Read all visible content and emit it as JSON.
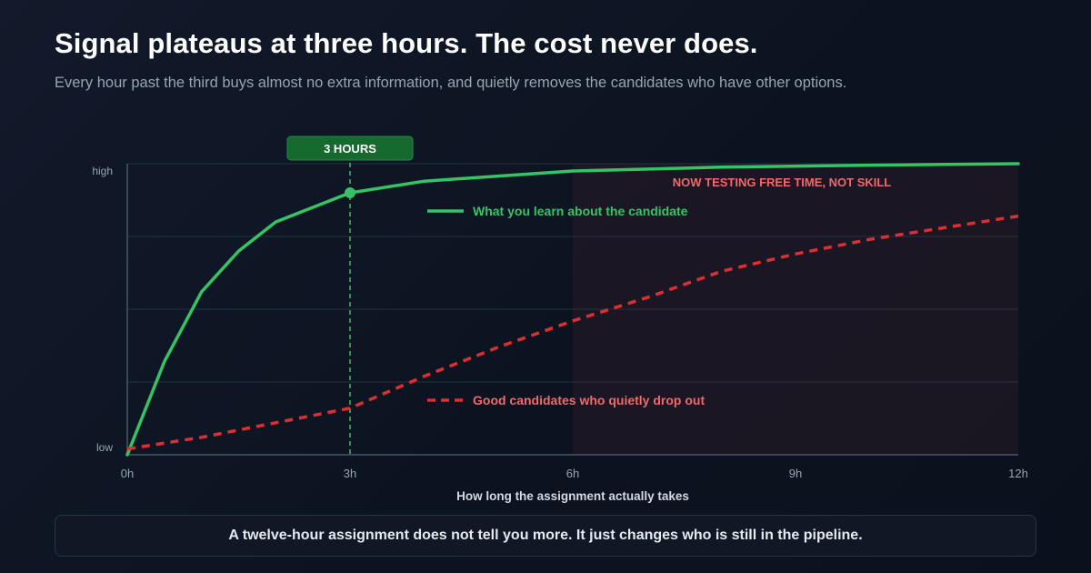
{
  "header": {
    "title": "Signal plateaus at three hours. The cost never does.",
    "subtitle": "Every hour past the third buys almost no extra information, and quietly removes the candidates who have other options."
  },
  "footer": {
    "text": "A twelve-hour assignment does not tell you more. It just changes who is still in the pipeline."
  },
  "chart_data": {
    "type": "line",
    "xlabel": "How long the assignment actually takes",
    "ylabel": "",
    "xlim": [
      0,
      12
    ],
    "ylim": [
      0,
      1
    ],
    "x_ticks": [
      {
        "value": 0,
        "label": "0h"
      },
      {
        "value": 3,
        "label": "3h"
      },
      {
        "value": 6,
        "label": "6h"
      },
      {
        "value": 9,
        "label": "9h"
      },
      {
        "value": 12,
        "label": "12h"
      }
    ],
    "y_ticks": [
      {
        "value": 0,
        "label": "low"
      },
      {
        "value": 1,
        "label": "high"
      }
    ],
    "grid": true,
    "series": [
      {
        "name": "What you learn about the candidate",
        "color": "#34c463",
        "dash": false,
        "x": [
          0,
          0.5,
          1,
          1.5,
          2,
          3,
          4,
          6,
          8,
          10,
          12
        ],
        "y": [
          0,
          0.32,
          0.56,
          0.7,
          0.8,
          0.9,
          0.94,
          0.975,
          0.988,
          0.995,
          1.0
        ]
      },
      {
        "name": "Good candidates who quietly drop out",
        "color": "#dc2f33",
        "dash": true,
        "x": [
          0,
          1,
          2,
          3,
          4,
          5,
          6,
          7,
          8,
          9,
          10,
          11,
          12
        ],
        "y": [
          0.02,
          0.06,
          0.11,
          0.16,
          0.27,
          0.37,
          0.46,
          0.54,
          0.63,
          0.69,
          0.74,
          0.78,
          0.82
        ]
      }
    ],
    "marker": {
      "x": 3,
      "y": 0.9,
      "series": 0
    },
    "vline": {
      "x": 3,
      "label": "3 HOURS",
      "color": "#34c463"
    },
    "shaded_region": {
      "x_start": 6,
      "x_end": 12,
      "label": "NOW TESTING FREE TIME, NOT SKILL",
      "color": "#ef6a6a"
    }
  }
}
